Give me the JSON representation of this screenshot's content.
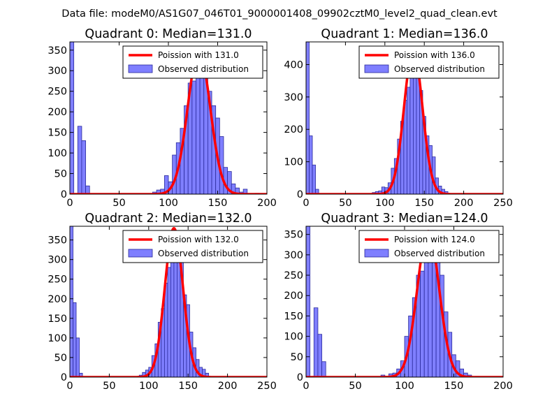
{
  "figure": {
    "title": "Data file: modeM0/AS1G07_046T01_9000001408_09902cztM0_level2_quad_clean.evt"
  },
  "colors": {
    "bar_fill": "#7f7fff",
    "bar_edge": "#2a2a9a",
    "fit_line": "#ff0000",
    "legend_border": "#000000"
  },
  "chart_data": [
    {
      "type": "bar",
      "title": "Quadrant 0: Median=131.0",
      "median": 131.0,
      "xlim": [
        0,
        200
      ],
      "ylim": [
        0,
        370
      ],
      "xticks": [
        0,
        50,
        100,
        150,
        200
      ],
      "yticks": [
        0,
        50,
        100,
        150,
        200,
        250,
        300,
        350
      ],
      "bin_width": 4,
      "legend": [
        "Poission with 131.0",
        "Observed distribution"
      ],
      "bins": [
        [
          0,
          370
        ],
        [
          4,
          0
        ],
        [
          8,
          165
        ],
        [
          12,
          130
        ],
        [
          16,
          20
        ],
        [
          84,
          5
        ],
        [
          88,
          10
        ],
        [
          92,
          12
        ],
        [
          96,
          45
        ],
        [
          100,
          30
        ],
        [
          104,
          95
        ],
        [
          108,
          125
        ],
        [
          112,
          160
        ],
        [
          116,
          215
        ],
        [
          120,
          270
        ],
        [
          124,
          275
        ],
        [
          128,
          320
        ],
        [
          132,
          290
        ],
        [
          136,
          290
        ],
        [
          140,
          250
        ],
        [
          144,
          215
        ],
        [
          148,
          185
        ],
        [
          152,
          140
        ],
        [
          156,
          65
        ],
        [
          160,
          55
        ],
        [
          164,
          25
        ],
        [
          168,
          15
        ],
        [
          172,
          5
        ],
        [
          176,
          12
        ],
        [
          188,
          2
        ]
      ],
      "fit_peak": 348
    },
    {
      "type": "bar",
      "title": "Quadrant 1: Median=136.0",
      "median": 136.0,
      "xlim": [
        0,
        250
      ],
      "ylim": [
        0,
        470
      ],
      "xticks": [
        0,
        50,
        100,
        150,
        200,
        250
      ],
      "yticks": [
        0,
        100,
        200,
        300,
        400
      ],
      "bin_width": 4,
      "legend": [
        "Poission with 136.0",
        "Observed distribution"
      ],
      "bins": [
        [
          0,
          470
        ],
        [
          4,
          180
        ],
        [
          8,
          90
        ],
        [
          12,
          15
        ],
        [
          84,
          5
        ],
        [
          88,
          8
        ],
        [
          92,
          10
        ],
        [
          96,
          22
        ],
        [
          100,
          20
        ],
        [
          104,
          35
        ],
        [
          108,
          80
        ],
        [
          112,
          110
        ],
        [
          116,
          170
        ],
        [
          120,
          225
        ],
        [
          124,
          290
        ],
        [
          128,
          330
        ],
        [
          132,
          400
        ],
        [
          136,
          440
        ],
        [
          140,
          405
        ],
        [
          144,
          320
        ],
        [
          148,
          240
        ],
        [
          152,
          180
        ],
        [
          156,
          150
        ],
        [
          160,
          115
        ],
        [
          164,
          50
        ],
        [
          168,
          25
        ],
        [
          172,
          15
        ],
        [
          176,
          8
        ]
      ],
      "fit_peak": 445
    },
    {
      "type": "bar",
      "title": "Quadrant 2: Median=132.0",
      "median": 132.0,
      "xlim": [
        0,
        250
      ],
      "ylim": [
        0,
        385
      ],
      "xticks": [
        0,
        50,
        100,
        150,
        200,
        250
      ],
      "yticks": [
        0,
        50,
        100,
        150,
        200,
        250,
        300,
        350
      ],
      "bin_width": 4,
      "legend": [
        "Poission with 132.0",
        "Observed distribution"
      ],
      "bins": [
        [
          0,
          385
        ],
        [
          4,
          190
        ],
        [
          8,
          100
        ],
        [
          12,
          10
        ],
        [
          88,
          5
        ],
        [
          92,
          12
        ],
        [
          96,
          18
        ],
        [
          100,
          25
        ],
        [
          104,
          55
        ],
        [
          108,
          85
        ],
        [
          112,
          140
        ],
        [
          116,
          175
        ],
        [
          120,
          240
        ],
        [
          124,
          280
        ],
        [
          128,
          330
        ],
        [
          132,
          370
        ],
        [
          136,
          355
        ],
        [
          140,
          300
        ],
        [
          144,
          210
        ],
        [
          148,
          185
        ],
        [
          152,
          115
        ],
        [
          156,
          75
        ],
        [
          160,
          45
        ],
        [
          164,
          25
        ],
        [
          168,
          20
        ],
        [
          172,
          10
        ],
        [
          176,
          2
        ]
      ],
      "fit_peak": 380
    },
    {
      "type": "bar",
      "title": "Quadrant 3: Median=124.0",
      "median": 124.0,
      "xlim": [
        0,
        200
      ],
      "ylim": [
        0,
        370
      ],
      "xticks": [
        0,
        50,
        100,
        150,
        200
      ],
      "yticks": [
        0,
        50,
        100,
        150,
        200,
        250,
        300,
        350
      ],
      "bin_width": 4,
      "legend": [
        "Poission with 124.0",
        "Observed distribution"
      ],
      "bins": [
        [
          0,
          370
        ],
        [
          4,
          0
        ],
        [
          8,
          170
        ],
        [
          12,
          105
        ],
        [
          16,
          38
        ],
        [
          76,
          5
        ],
        [
          84,
          8
        ],
        [
          88,
          10
        ],
        [
          92,
          20
        ],
        [
          96,
          40
        ],
        [
          100,
          100
        ],
        [
          104,
          150
        ],
        [
          108,
          195
        ],
        [
          112,
          250
        ],
        [
          116,
          260
        ],
        [
          120,
          290
        ],
        [
          124,
          360
        ],
        [
          128,
          360
        ],
        [
          132,
          295
        ],
        [
          136,
          250
        ],
        [
          140,
          160
        ],
        [
          144,
          110
        ],
        [
          148,
          55
        ],
        [
          152,
          40
        ],
        [
          156,
          20
        ],
        [
          160,
          10
        ],
        [
          164,
          5
        ],
        [
          172,
          2
        ]
      ],
      "fit_peak": 358
    }
  ]
}
